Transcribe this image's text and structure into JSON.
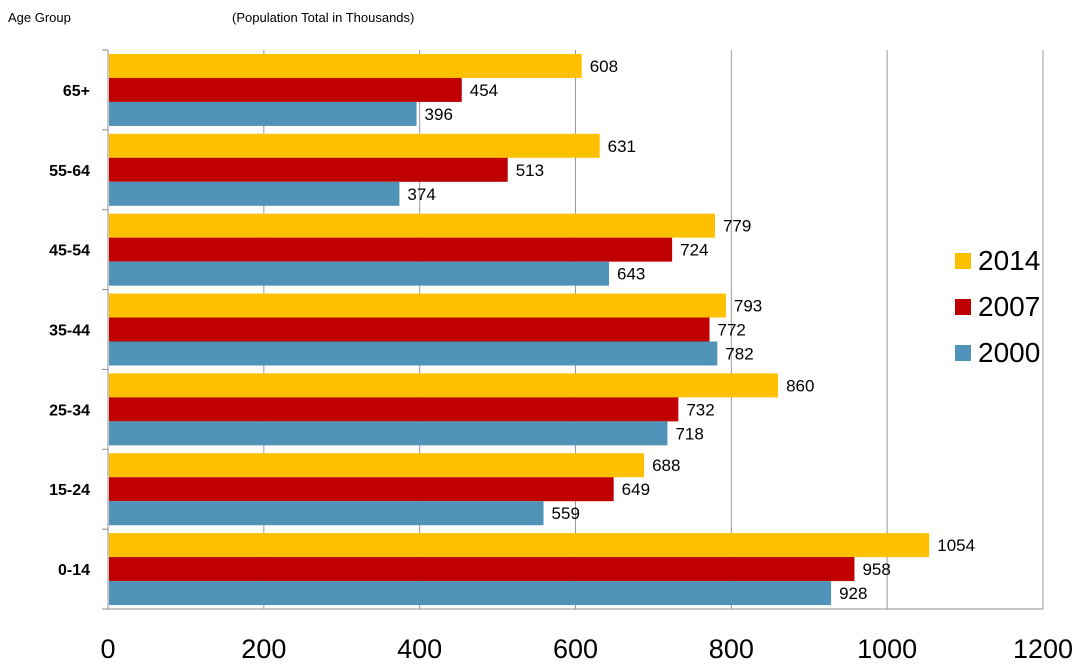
{
  "header": {
    "left_label": "Age Group",
    "center_label": "(Population Total in Thousands)"
  },
  "chart_data": {
    "type": "bar",
    "orientation": "horizontal",
    "categories": [
      "65+",
      "55-64",
      "45-54",
      "35-44",
      "25-34",
      "15-24",
      "0-14"
    ],
    "series": [
      {
        "name": "2014",
        "color": "#FFC000",
        "values": [
          608,
          631,
          779,
          793,
          860,
          688,
          1054
        ]
      },
      {
        "name": "2007",
        "color": "#C00000",
        "values": [
          454,
          513,
          724,
          772,
          732,
          649,
          958
        ]
      },
      {
        "name": "2000",
        "color": "#4F94B8",
        "values": [
          396,
          374,
          643,
          782,
          718,
          559,
          928
        ]
      }
    ],
    "xlim": [
      0,
      1200
    ],
    "xticks": [
      0,
      200,
      400,
      600,
      800,
      1000,
      1200
    ],
    "grid": "vertical",
    "legend_position": "right"
  }
}
